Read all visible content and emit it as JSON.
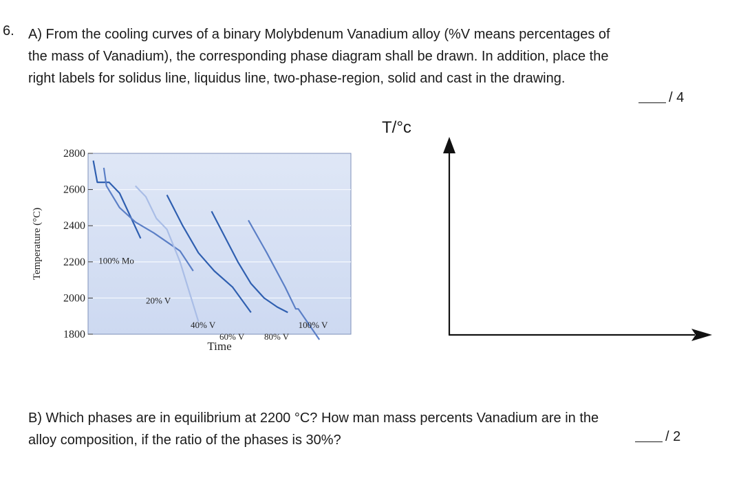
{
  "question": {
    "number": "6.",
    "part_a_lines": [
      "A) From the cooling curves of a binary Molybdenum Vanadium alloy (%V means percentages of",
      "the mass of Vanadium), the corresponding phase diagram shall be drawn. In addition, place the",
      "right labels for solidus line, liquidus line, two-phase-region, solid and cast in the drawing."
    ],
    "part_a_points": "/ 4",
    "part_b_lines": [
      "B) Which phases are in equilibrium at 2200 °C? How man mass percents Vanadium are in the",
      "alloy composition, if the ratio of the phases is 30%?"
    ],
    "part_b_points": "/ 2"
  },
  "drawing_axes": {
    "ylabel": "T/°c"
  },
  "chart_data": {
    "type": "line",
    "title": "",
    "xlabel": "Time",
    "ylabel": "Temperature (°C)",
    "ylim": [
      1800,
      2800
    ],
    "yticks": [
      1800,
      2000,
      2200,
      2400,
      2600,
      2800
    ],
    "grid": true,
    "xlim": [
      0,
      100
    ],
    "series": [
      {
        "name": "100% Mo",
        "color": "#2f5fb0",
        "x": [
          2,
          3.5,
          8,
          12,
          20
        ],
        "y": [
          2760,
          2640,
          2640,
          2580,
          2330
        ]
      },
      {
        "name": "20% V",
        "color": "#5b7fc6",
        "x": [
          6,
          7,
          12,
          18,
          25,
          35,
          40
        ],
        "y": [
          2720,
          2620,
          2500,
          2420,
          2360,
          2260,
          2150
        ]
      },
      {
        "name": "40% V",
        "color": "#a9bde6",
        "x": [
          18,
          22,
          26,
          30,
          35,
          42
        ],
        "y": [
          2620,
          2560,
          2440,
          2380,
          2200,
          1870
        ]
      },
      {
        "name": "60% V",
        "color": "#2f5fb0",
        "x": [
          30,
          36,
          42,
          48,
          55,
          62
        ],
        "y": [
          2570,
          2400,
          2250,
          2150,
          2060,
          1920
        ]
      },
      {
        "name": "80% V",
        "color": "#2f5fb0",
        "x": [
          47,
          52,
          57,
          62,
          67,
          72,
          76
        ],
        "y": [
          2480,
          2340,
          2200,
          2080,
          2000,
          1950,
          1920
        ]
      },
      {
        "name": "100% V",
        "color": "#5b7fc6",
        "x": [
          61,
          68,
          75,
          79,
          80,
          88
        ],
        "y": [
          2430,
          2250,
          2060,
          1940,
          1940,
          1770
        ]
      }
    ],
    "annotations": [
      {
        "text": "100% Mo",
        "x": 4,
        "y": 2190
      },
      {
        "text": "20% V",
        "x": 22,
        "y": 1970
      },
      {
        "text": "40% V",
        "x": 39,
        "y": 1835
      },
      {
        "text": "60% V",
        "x": 50,
        "y": 1770
      },
      {
        "text": "80% V",
        "x": 67,
        "y": 1770
      },
      {
        "text": "100% V",
        "x": 80,
        "y": 1835
      }
    ]
  }
}
